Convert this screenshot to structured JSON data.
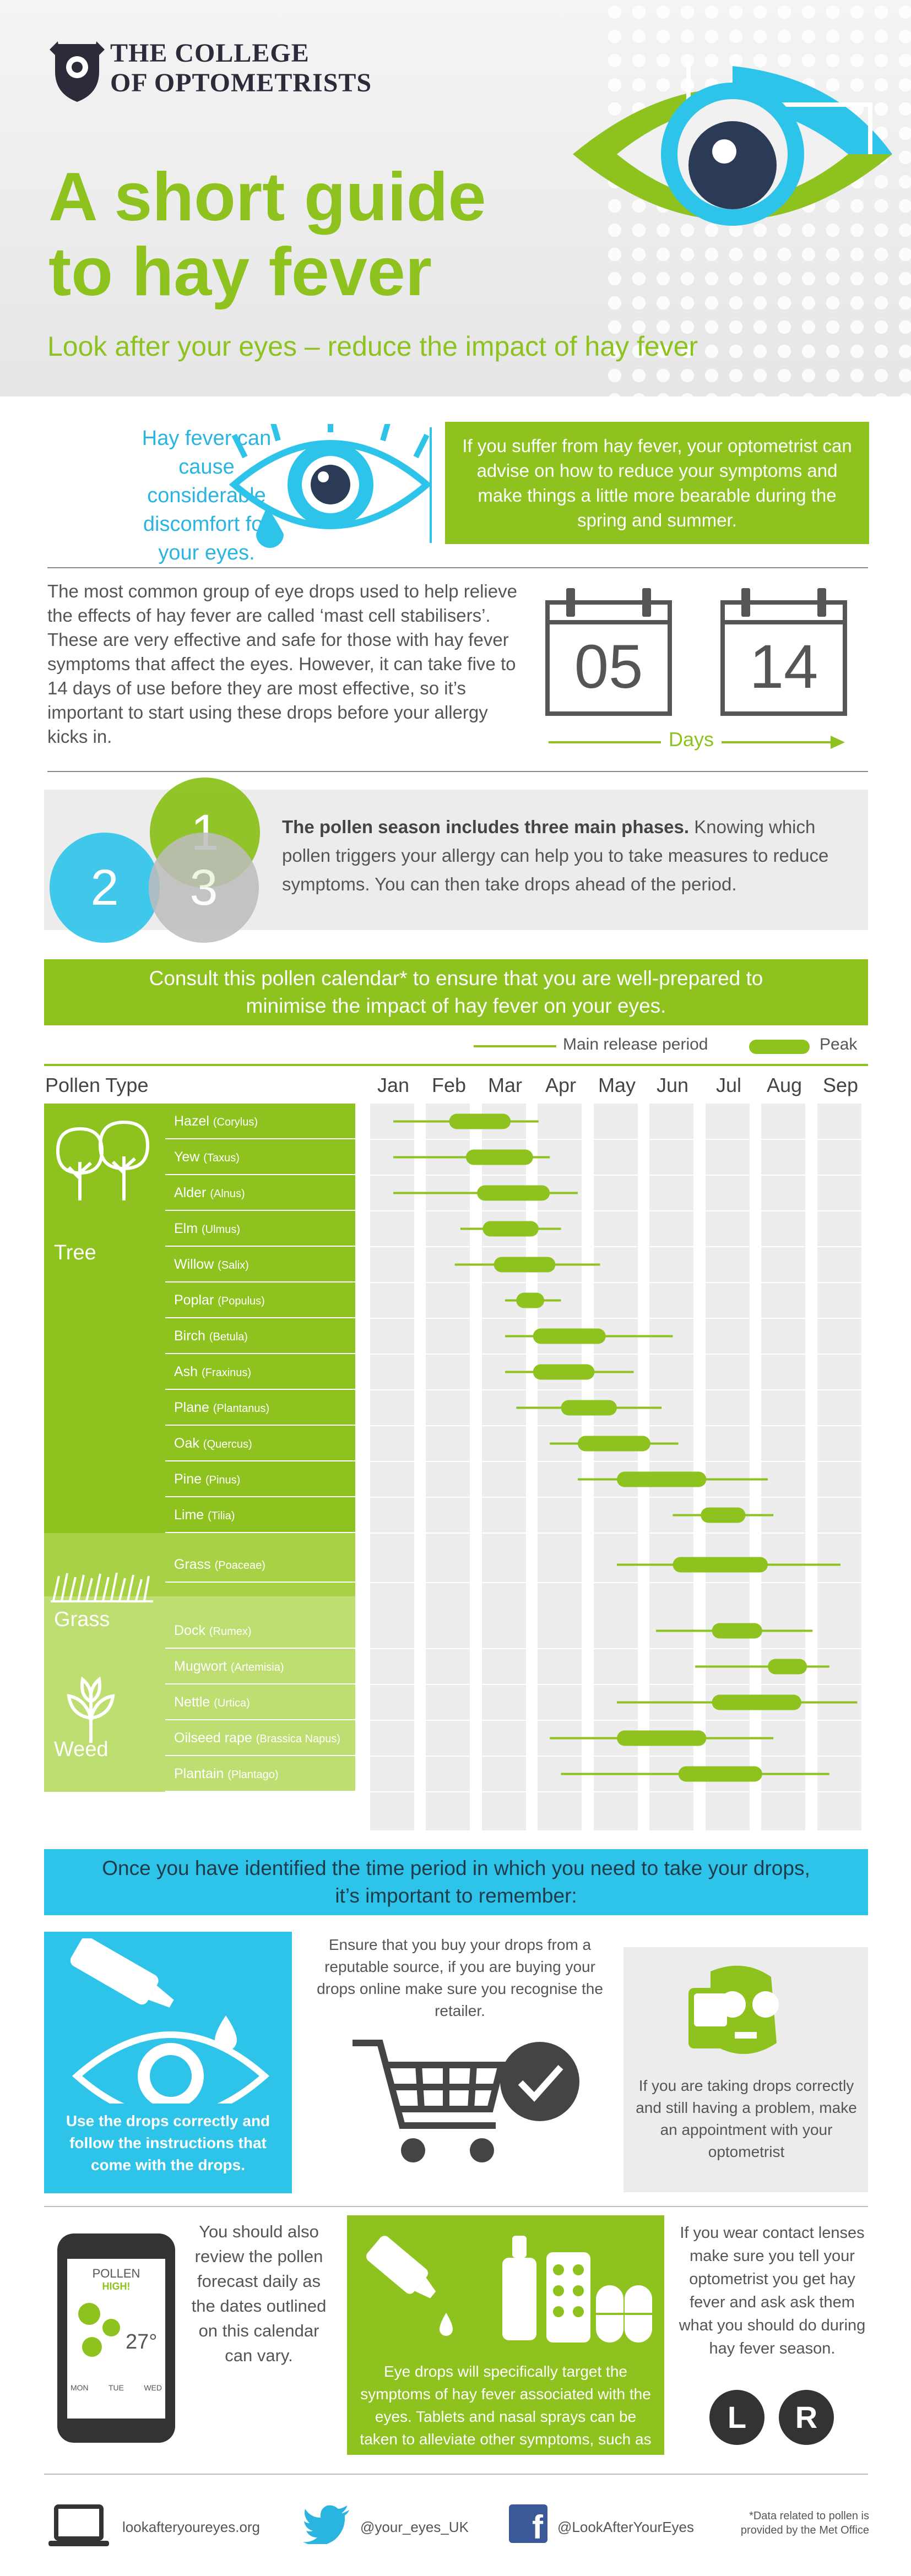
{
  "header": {
    "org_line1": "THE COLLEGE",
    "org_line2": "OF OPTOMETRISTS",
    "title_line1": "A short guide",
    "title_line2": "to hay fever",
    "subtitle": "Look after your eyes – reduce the impact of hay fever"
  },
  "intro": {
    "left_text": "Hay fever can cause considerable discomfort for your eyes.",
    "right_text": "If you suffer from hay fever, your optometrist can advise on how to reduce your symptoms and make things a little more bearable during the spring and summer."
  },
  "drops": {
    "text": "The most common group of eye drops used to help relieve the effects of hay fever are called ‘mast cell stabilisers’. These are very effective and safe for those with hay fever symptoms that affect the eyes. However, it can take five to 14 days of use before they are most effective, so it’s important to start using these drops before your allergy kicks in.",
    "cal_from": "05",
    "cal_to": "14",
    "days_label": "Days"
  },
  "phases": {
    "numbers": [
      "1",
      "2",
      "3"
    ],
    "bold": "The pollen season includes three main phases.",
    "text": " Knowing which pollen triggers your allergy can help you to take measures to reduce symptoms. You can then take drops ahead of the period."
  },
  "calendar": {
    "banner": "Consult this pollen calendar* to ensure that you are well-prepared to minimise the impact of hay fever on your eyes.",
    "legend_main": "Main release period",
    "legend_peak": "Peak",
    "pollen_type_label": "Pollen Type",
    "months": [
      "Jan",
      "Feb",
      "Mar",
      "Apr",
      "May",
      "Jun",
      "Jul",
      "Aug",
      "Sep"
    ],
    "groups": [
      {
        "label": "Tree",
        "color": "#8dc21f"
      },
      {
        "label": "Grass",
        "color": "#a9d145"
      },
      {
        "label": "Weed",
        "color": "#bfde72"
      }
    ],
    "plants": [
      {
        "group": 0,
        "name": "Hazel",
        "latin": "(Corylus)",
        "main": [
          1.0,
          3.6
        ],
        "peak": [
          2.0,
          3.1
        ]
      },
      {
        "group": 0,
        "name": "Yew",
        "latin": "(Taxus)",
        "main": [
          1.0,
          3.8
        ],
        "peak": [
          2.3,
          3.5
        ]
      },
      {
        "group": 0,
        "name": "Alder",
        "latin": "(Alnus)",
        "main": [
          1.0,
          4.3
        ],
        "peak": [
          2.5,
          3.8
        ]
      },
      {
        "group": 0,
        "name": "Elm",
        "latin": "(Ulmus)",
        "main": [
          2.2,
          4.0
        ],
        "peak": [
          2.6,
          3.6
        ]
      },
      {
        "group": 0,
        "name": "Willow",
        "latin": "(Salix)",
        "main": [
          2.1,
          4.7
        ],
        "peak": [
          2.8,
          3.9
        ]
      },
      {
        "group": 0,
        "name": "Poplar",
        "latin": "(Populus)",
        "main": [
          3.0,
          4.0
        ],
        "peak": [
          3.2,
          3.7
        ]
      },
      {
        "group": 0,
        "name": "Birch",
        "latin": "(Betula)",
        "main": [
          3.0,
          6.0
        ],
        "peak": [
          3.5,
          4.8
        ]
      },
      {
        "group": 0,
        "name": "Ash",
        "latin": "(Fraxinus)",
        "main": [
          3.0,
          5.3
        ],
        "peak": [
          3.5,
          4.6
        ]
      },
      {
        "group": 0,
        "name": "Plane",
        "latin": "(Plantanus)",
        "main": [
          3.2,
          5.8
        ],
        "peak": [
          4.0,
          5.0
        ]
      },
      {
        "group": 0,
        "name": "Oak",
        "latin": "(Quercus)",
        "main": [
          3.8,
          6.1
        ],
        "peak": [
          4.3,
          5.6
        ]
      },
      {
        "group": 0,
        "name": "Pine",
        "latin": "(Pinus)",
        "main": [
          4.3,
          7.7
        ],
        "peak": [
          5.0,
          6.6
        ]
      },
      {
        "group": 0,
        "name": "Lime",
        "latin": "(Tilia)",
        "main": [
          6.0,
          7.8
        ],
        "peak": [
          6.5,
          7.3
        ]
      },
      {
        "group": 1,
        "name": "Grass",
        "latin": "(Poaceae)",
        "main": [
          5.0,
          9.0
        ],
        "peak": [
          6.0,
          7.7
        ]
      },
      {
        "group": 2,
        "name": "Dock",
        "latin": "(Rumex)",
        "main": [
          5.7,
          8.5
        ],
        "peak": [
          6.7,
          7.6
        ]
      },
      {
        "group": 2,
        "name": "Mugwort",
        "latin": "(Artemisia)",
        "main": [
          6.4,
          8.8
        ],
        "peak": [
          7.7,
          8.4
        ]
      },
      {
        "group": 2,
        "name": "Nettle",
        "latin": "(Urtica)",
        "main": [
          5.0,
          9.3
        ],
        "peak": [
          6.7,
          8.3
        ]
      },
      {
        "group": 2,
        "name": "Oilseed rape",
        "latin": "(Brassica Napus)",
        "main": [
          3.8,
          7.8
        ],
        "peak": [
          5.0,
          6.6
        ]
      },
      {
        "group": 2,
        "name": "Plantain",
        "latin": "(Plantago)",
        "main": [
          4.0,
          8.8
        ],
        "peak": [
          6.1,
          7.6
        ]
      }
    ]
  },
  "remember": {
    "banner": "Once you have identified the time period in which you need to take your drops, it’s important to remember:",
    "drops_tip": "Use the drops correctly and follow the instructions that come with the drops.",
    "buy_tip": "Ensure that you buy your drops from a reputable source, if you are buying your drops online make sure you recognise the retailer.",
    "problem_tip": "If you are taking drops correctly and still having a problem, make an appointment with your optometrist"
  },
  "bottom": {
    "phone_pollen": "POLLEN",
    "phone_level": "HIGH!",
    "phone_temp": "27°",
    "phone_days": [
      "MON",
      "TUE",
      "WED"
    ],
    "phone_text": "You should also review the pollen forecast daily as the dates outlined on this calendar can vary.",
    "meds_text": "Eye drops will specifically target the symptoms of hay fever associated with the eyes. Tablets and nasal sprays can be taken to alleviate other symptoms, such as sneezing or a runny nose.",
    "contact_text": "If you wear contact lenses make sure you tell your optometrist you get hay fever and ask ask them what you should do during hay fever season.",
    "lens_l": "L",
    "lens_r": "R"
  },
  "footer": {
    "website": "lookafteryoureyes.org",
    "twitter": "@your_eyes_UK",
    "facebook": "@LookAfterYourEyes",
    "note": "*Data related to pollen is provided by the Met Office"
  },
  "colors": {
    "green": "#8dc21f",
    "cyan": "#2ec4ea",
    "dark": "#555555",
    "navy": "#2b2b3a"
  }
}
